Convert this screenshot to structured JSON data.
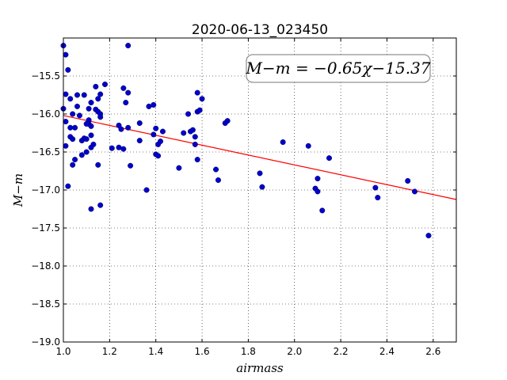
{
  "chart_data": {
    "type": "scatter",
    "title": "2020-06-13_023450",
    "xlabel": "airmass",
    "ylabel": "M−m",
    "xlim": [
      1.0,
      2.7
    ],
    "ylim": [
      -19.0,
      -15.0
    ],
    "y_inverted": true,
    "grid": true,
    "x_ticks": [
      1.0,
      1.2,
      1.4,
      1.6,
      1.8,
      2.0,
      2.2,
      2.4,
      2.6
    ],
    "x_tick_labels": [
      "1.0",
      "1.2",
      "1.4",
      "1.6",
      "1.8",
      "2.0",
      "2.2",
      "2.4",
      "2.6"
    ],
    "y_ticks": [
      -15.5,
      -16.0,
      -16.5,
      -17.0,
      -17.5,
      -18.0,
      -18.5,
      -19.0
    ],
    "y_tick_labels": [
      "−15.5",
      "−16.0",
      "−16.5",
      "−17.0",
      "−17.5",
      "−18.0",
      "−18.5",
      "−19.0"
    ],
    "annotation": "M−m = −0.65χ−15.37",
    "fit": {
      "slope": -0.65,
      "intercept": -15.37,
      "color": "#ff0000"
    },
    "point_color": "#0000cc",
    "points": [
      [
        1.0,
        -15.1
      ],
      [
        1.01,
        -15.22
      ],
      [
        1.02,
        -15.42
      ],
      [
        1.01,
        -15.74
      ],
      [
        1.03,
        -15.8
      ],
      [
        1.0,
        -15.93
      ],
      [
        1.01,
        -16.1
      ],
      [
        1.03,
        -16.18
      ],
      [
        1.01,
        -16.42
      ],
      [
        1.02,
        -16.95
      ],
      [
        1.03,
        -16.3
      ],
      [
        1.04,
        -16.33
      ],
      [
        1.05,
        -16.18
      ],
      [
        1.04,
        -16.0
      ],
      [
        1.06,
        -15.9
      ],
      [
        1.06,
        -15.75
      ],
      [
        1.09,
        -15.75
      ],
      [
        1.07,
        -16.02
      ],
      [
        1.05,
        -16.6
      ],
      [
        1.04,
        -16.67
      ],
      [
        1.08,
        -16.35
      ],
      [
        1.09,
        -16.32
      ],
      [
        1.1,
        -16.33
      ],
      [
        1.08,
        -16.54
      ],
      [
        1.1,
        -16.5
      ],
      [
        1.11,
        -16.13
      ],
      [
        1.1,
        -16.13
      ],
      [
        1.12,
        -16.16
      ],
      [
        1.11,
        -16.08
      ],
      [
        1.11,
        -15.93
      ],
      [
        1.12,
        -15.85
      ],
      [
        1.14,
        -15.94
      ],
      [
        1.14,
        -15.64
      ],
      [
        1.15,
        -15.8
      ],
      [
        1.16,
        -15.74
      ],
      [
        1.15,
        -15.97
      ],
      [
        1.16,
        -16.0
      ],
      [
        1.16,
        -16.04
      ],
      [
        1.18,
        -15.61
      ],
      [
        1.12,
        -16.28
      ],
      [
        1.13,
        -16.4
      ],
      [
        1.12,
        -16.44
      ],
      [
        1.12,
        -17.25
      ],
      [
        1.16,
        -17.2
      ],
      [
        1.15,
        -16.67
      ],
      [
        1.21,
        -16.45
      ],
      [
        1.24,
        -16.15
      ],
      [
        1.25,
        -16.2
      ],
      [
        1.24,
        -16.44
      ],
      [
        1.26,
        -16.46
      ],
      [
        1.26,
        -15.66
      ],
      [
        1.27,
        -15.85
      ],
      [
        1.28,
        -15.72
      ],
      [
        1.28,
        -16.18
      ],
      [
        1.29,
        -16.68
      ],
      [
        1.28,
        -15.1
      ],
      [
        1.33,
        -16.12
      ],
      [
        1.33,
        -16.35
      ],
      [
        1.36,
        -17.0
      ],
      [
        1.37,
        -15.9
      ],
      [
        1.39,
        -15.88
      ],
      [
        1.39,
        -16.27
      ],
      [
        1.4,
        -16.19
      ],
      [
        1.41,
        -16.4
      ],
      [
        1.4,
        -16.53
      ],
      [
        1.41,
        -16.55
      ],
      [
        1.42,
        -16.36
      ],
      [
        1.43,
        -16.23
      ],
      [
        1.5,
        -16.71
      ],
      [
        1.52,
        -16.25
      ],
      [
        1.54,
        -16.0
      ],
      [
        1.55,
        -16.23
      ],
      [
        1.56,
        -16.21
      ],
      [
        1.57,
        -16.3
      ],
      [
        1.57,
        -16.4
      ],
      [
        1.58,
        -15.72
      ],
      [
        1.58,
        -15.97
      ],
      [
        1.59,
        -15.95
      ],
      [
        1.6,
        -15.8
      ],
      [
        1.58,
        -16.6
      ],
      [
        1.66,
        -16.73
      ],
      [
        1.67,
        -16.87
      ],
      [
        1.7,
        -16.12
      ],
      [
        1.71,
        -16.09
      ],
      [
        1.85,
        -16.78
      ],
      [
        1.86,
        -16.96
      ],
      [
        1.95,
        -16.37
      ],
      [
        2.06,
        -16.42
      ],
      [
        2.1,
        -16.85
      ],
      [
        2.09,
        -16.98
      ],
      [
        2.1,
        -17.02
      ],
      [
        2.12,
        -17.27
      ],
      [
        2.15,
        -16.58
      ],
      [
        2.35,
        -16.97
      ],
      [
        2.36,
        -17.1
      ],
      [
        2.49,
        -16.88
      ],
      [
        2.52,
        -17.02
      ],
      [
        2.58,
        -17.6
      ]
    ]
  }
}
